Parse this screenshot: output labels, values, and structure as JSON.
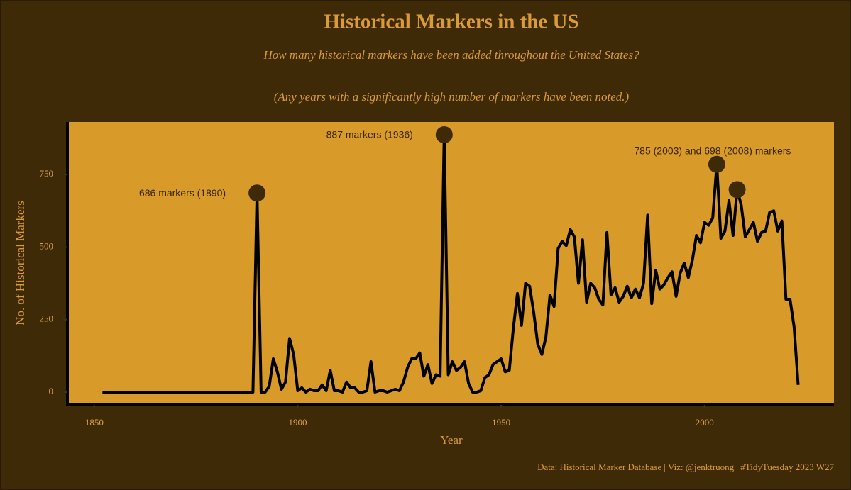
{
  "chart_data": {
    "type": "line",
    "title": "Historical Markers in the US",
    "subtitle": "How many historical markers have been added throughout the United States?",
    "subtitle_note": "(Any years with a significantly high number of markers have been noted.)",
    "x_label": "Year",
    "y_label": "No. of Historical Markers",
    "caption": "Data: Historical Marker Database | Viz: @jenktruong | #TidyTuesday 2023 W27",
    "x": [
      1852,
      1853,
      1854,
      1855,
      1856,
      1857,
      1858,
      1859,
      1860,
      1861,
      1862,
      1863,
      1864,
      1865,
      1866,
      1867,
      1868,
      1869,
      1870,
      1871,
      1872,
      1873,
      1874,
      1875,
      1876,
      1877,
      1878,
      1879,
      1880,
      1881,
      1882,
      1883,
      1884,
      1885,
      1886,
      1887,
      1888,
      1889,
      1890,
      1891,
      1892,
      1893,
      1894,
      1895,
      1896,
      1897,
      1898,
      1899,
      1900,
      1901,
      1902,
      1903,
      1904,
      1905,
      1906,
      1907,
      1908,
      1909,
      1910,
      1911,
      1912,
      1913,
      1914,
      1915,
      1916,
      1917,
      1918,
      1919,
      1920,
      1921,
      1922,
      1923,
      1924,
      1925,
      1926,
      1927,
      1928,
      1929,
      1930,
      1931,
      1932,
      1933,
      1934,
      1935,
      1936,
      1937,
      1938,
      1939,
      1940,
      1941,
      1942,
      1943,
      1944,
      1945,
      1946,
      1947,
      1948,
      1949,
      1950,
      1951,
      1952,
      1953,
      1954,
      1955,
      1956,
      1957,
      1958,
      1959,
      1960,
      1961,
      1962,
      1963,
      1964,
      1965,
      1966,
      1967,
      1968,
      1969,
      1970,
      1971,
      1972,
      1973,
      1974,
      1975,
      1976,
      1977,
      1978,
      1979,
      1980,
      1981,
      1982,
      1983,
      1984,
      1985,
      1986,
      1987,
      1988,
      1989,
      1990,
      1991,
      1992,
      1993,
      1994,
      1995,
      1996,
      1997,
      1998,
      1999,
      2000,
      2001,
      2002,
      2003,
      2004,
      2005,
      2006,
      2007,
      2008,
      2009,
      2010,
      2011,
      2012,
      2013,
      2014,
      2015,
      2016,
      2017,
      2018,
      2019,
      2020,
      2021,
      2022,
      2023
    ],
    "values": [
      0,
      0,
      0,
      0,
      0,
      0,
      0,
      0,
      0,
      0,
      0,
      0,
      0,
      0,
      0,
      0,
      0,
      0,
      0,
      0,
      0,
      0,
      0,
      0,
      0,
      0,
      0,
      0,
      0,
      0,
      0,
      0,
      0,
      0,
      0,
      0,
      0,
      0,
      686,
      0,
      0,
      20,
      115,
      70,
      10,
      35,
      185,
      130,
      5,
      15,
      0,
      10,
      5,
      5,
      25,
      5,
      75,
      5,
      5,
      0,
      35,
      15,
      15,
      0,
      0,
      5,
      105,
      0,
      5,
      5,
      0,
      5,
      10,
      5,
      35,
      85,
      115,
      115,
      135,
      55,
      95,
      30,
      60,
      55,
      887,
      60,
      105,
      75,
      85,
      105,
      30,
      0,
      0,
      5,
      50,
      60,
      95,
      105,
      115,
      70,
      75,
      220,
      340,
      230,
      375,
      365,
      275,
      165,
      130,
      190,
      335,
      295,
      495,
      520,
      505,
      560,
      535,
      375,
      525,
      310,
      375,
      360,
      320,
      300,
      550,
      335,
      360,
      310,
      330,
      365,
      325,
      355,
      325,
      375,
      610,
      305,
      420,
      355,
      370,
      395,
      415,
      330,
      410,
      445,
      395,
      455,
      540,
      515,
      585,
      575,
      600,
      785,
      530,
      555,
      660,
      540,
      698,
      645,
      535,
      560,
      585,
      520,
      550,
      555,
      620,
      625,
      555,
      590,
      320,
      320,
      225,
      25
    ],
    "color": "#000000",
    "highlight_color": "#3f2a08",
    "highlights": [
      {
        "x": 1890,
        "y": 686,
        "label": "686 markers (1890)",
        "label_position": "left"
      },
      {
        "x": 1936,
        "y": 887,
        "label": "887 markers (1936)",
        "label_position": "left"
      },
      {
        "x": 2003,
        "y": 785,
        "label": "785 (2003) and 698 (2008) markers",
        "label_position": "above"
      },
      {
        "x": 2008,
        "y": 698
      }
    ],
    "xlim": [
      1843.4,
      2031.8
    ],
    "ylim": [
      -41.5,
      931
    ],
    "xticks": [
      1850,
      1900,
      1950,
      2000
    ],
    "yticks": [
      0,
      250,
      500,
      750
    ],
    "grid": false
  }
}
